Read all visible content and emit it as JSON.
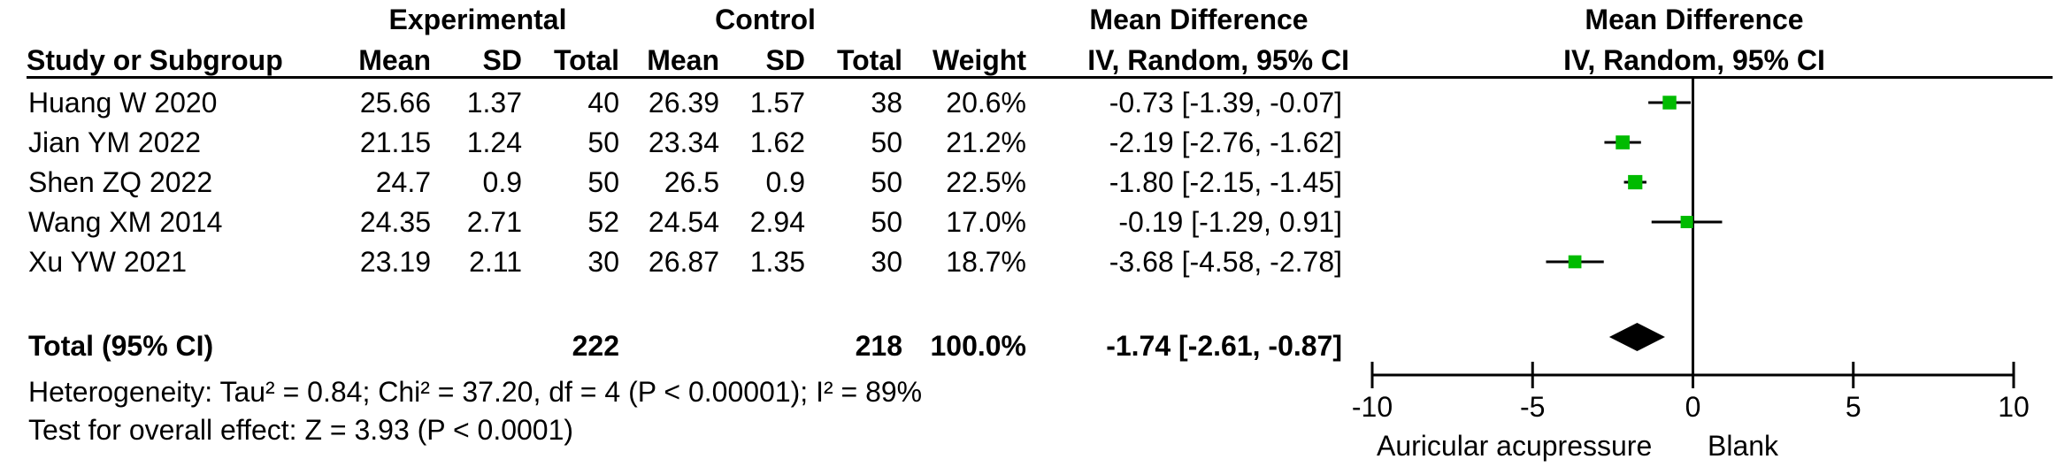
{
  "header": {
    "experimental": "Experimental",
    "control": "Control",
    "mean_difference_left": "Mean Difference",
    "mean_difference_right": "Mean Difference",
    "study_col": "Study or Subgroup",
    "exp_mean": "Mean",
    "exp_sd": "SD",
    "exp_total": "Total",
    "ctl_mean": "Mean",
    "ctl_sd": "SD",
    "ctl_total": "Total",
    "weight": "Weight",
    "ci_left": "IV, Random, 95% CI",
    "ci_right": "IV, Random, 95% CI"
  },
  "studies": [
    {
      "name": "Huang W 2020",
      "exp_mean": "25.66",
      "exp_sd": "1.37",
      "exp_total": "40",
      "ctl_mean": "26.39",
      "ctl_sd": "1.57",
      "ctl_total": "38",
      "weight": "20.6%",
      "ci_text": "-0.73 [-1.39, -0.07]"
    },
    {
      "name": "Jian YM 2022",
      "exp_mean": "21.15",
      "exp_sd": "1.24",
      "exp_total": "50",
      "ctl_mean": "23.34",
      "ctl_sd": "1.62",
      "ctl_total": "50",
      "weight": "21.2%",
      "ci_text": "-2.19 [-2.76, -1.62]"
    },
    {
      "name": "Shen ZQ 2022",
      "exp_mean": "24.7",
      "exp_sd": "0.9",
      "exp_total": "50",
      "ctl_mean": "26.5",
      "ctl_sd": "0.9",
      "ctl_total": "50",
      "weight": "22.5%",
      "ci_text": "-1.80 [-2.15, -1.45]"
    },
    {
      "name": "Wang XM 2014",
      "exp_mean": "24.35",
      "exp_sd": "2.71",
      "exp_total": "52",
      "ctl_mean": "24.54",
      "ctl_sd": "2.94",
      "ctl_total": "50",
      "weight": "17.0%",
      "ci_text": "-0.19 [-1.29, 0.91]"
    },
    {
      "name": "Xu YW 2021",
      "exp_mean": "23.19",
      "exp_sd": "2.11",
      "exp_total": "30",
      "ctl_mean": "26.87",
      "ctl_sd": "1.35",
      "ctl_total": "30",
      "weight": "18.7%",
      "ci_text": "-3.68 [-4.58, -2.78]"
    }
  ],
  "total": {
    "label": "Total (95% CI)",
    "exp_total": "222",
    "ctl_total": "218",
    "weight": "100.0%",
    "ci_text": "-1.74 [-2.61, -0.87]"
  },
  "heterogeneity": "Heterogeneity: Tau² = 0.84; Chi² = 37.20, df = 4 (P < 0.00001); I² = 89%",
  "overall_effect": "Test for overall effect: Z = 3.93 (P < 0.0001)",
  "favours": {
    "left": "Auricular acupressure",
    "right": "Blank"
  },
  "colors": {
    "point": "#00bb00",
    "diamond": "#000000",
    "line": "#000000"
  },
  "chart_data": {
    "type": "forest",
    "xlim": [
      -10,
      10
    ],
    "ticks": [
      -10,
      -5,
      0,
      5,
      10
    ],
    "reference_line": 0,
    "studies": [
      {
        "name": "Huang W 2020",
        "estimate": -0.73,
        "lower": -1.39,
        "upper": -0.07,
        "weight": 20.6
      },
      {
        "name": "Jian YM 2022",
        "estimate": -2.19,
        "lower": -2.76,
        "upper": -1.62,
        "weight": 21.2
      },
      {
        "name": "Shen ZQ 2022",
        "estimate": -1.8,
        "lower": -2.15,
        "upper": -1.45,
        "weight": 22.5
      },
      {
        "name": "Wang XM 2014",
        "estimate": -0.19,
        "lower": -1.29,
        "upper": 0.91,
        "weight": 17.0
      },
      {
        "name": "Xu YW 2021",
        "estimate": -3.68,
        "lower": -4.58,
        "upper": -2.78,
        "weight": 18.7
      }
    ],
    "pooled": {
      "estimate": -1.74,
      "lower": -2.61,
      "upper": -0.87
    }
  }
}
